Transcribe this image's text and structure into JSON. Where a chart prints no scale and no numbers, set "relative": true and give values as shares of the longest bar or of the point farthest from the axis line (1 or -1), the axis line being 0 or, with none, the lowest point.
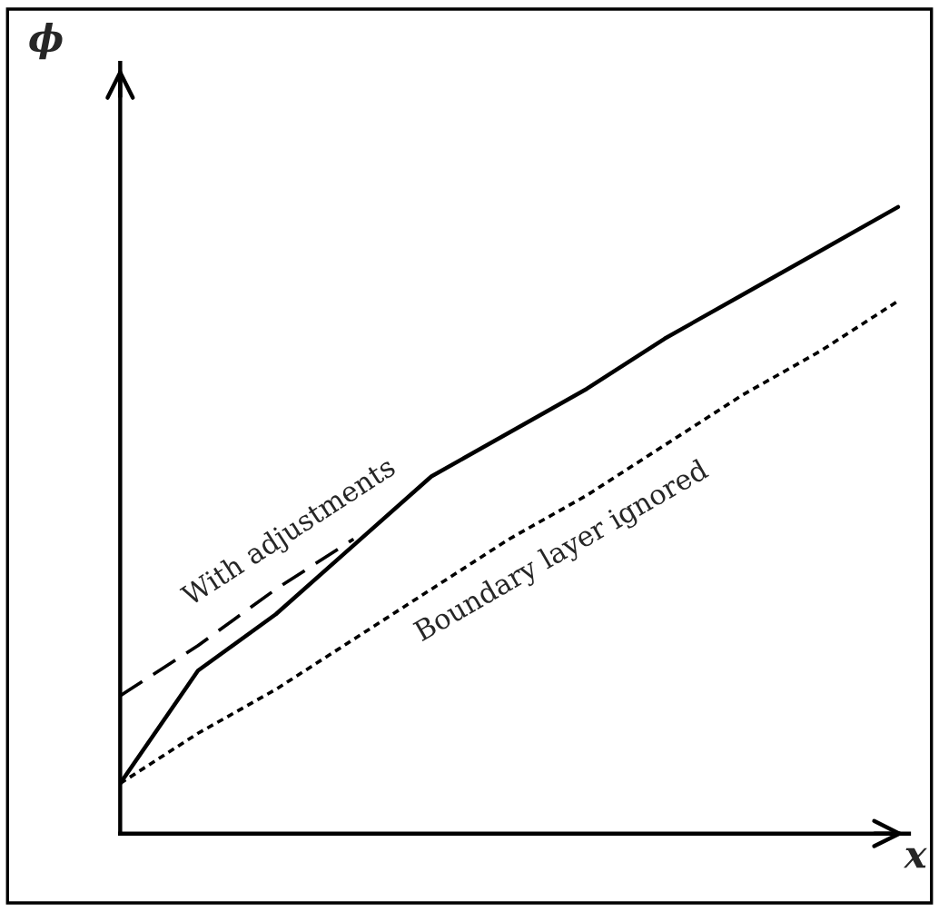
{
  "chart_data": {
    "type": "line",
    "relative": true,
    "xlabel": "x",
    "ylabel": "ϕ",
    "categories": [
      null,
      null,
      null,
      null,
      null,
      null,
      null,
      null,
      null,
      null,
      null
    ],
    "series": [
      {
        "color": "#000000",
        "line_style": "solid",
        "values": [
          0.08,
          0.26,
          0.35,
          0.46,
          0.57,
          0.64,
          0.71,
          0.79,
          0.86,
          0.93,
          1.0
        ]
      },
      {
        "color": "#000000",
        "line_style": "dashed",
        "values": [
          0.22,
          0.3,
          0.39,
          0.47,
          null,
          null,
          null,
          null,
          null,
          null,
          null
        ]
      },
      {
        "color": "#000000",
        "line_style": "dotted",
        "values": [
          0.08,
          0.16,
          0.23,
          0.31,
          0.39,
          0.47,
          0.54,
          0.62,
          0.7,
          0.77,
          0.85
        ]
      }
    ],
    "annotations": [
      "With adjustments",
      "Boundary layer ignored"
    ],
    "grid": false,
    "legend": false
  }
}
